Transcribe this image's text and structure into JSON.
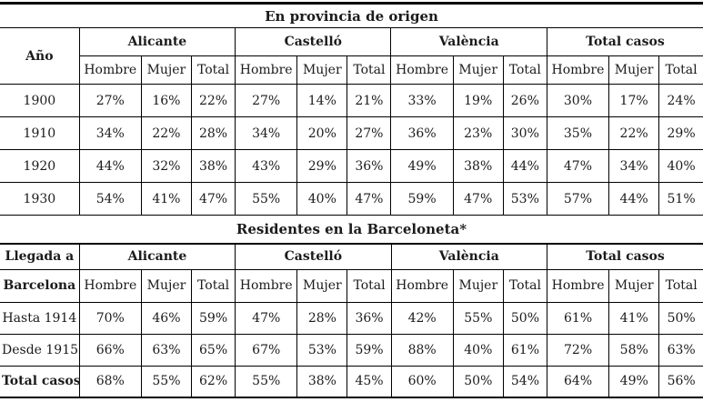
{
  "colors": {
    "text": "#1b1b1b",
    "line": "#000000",
    "background": "#ffffff"
  },
  "table1": {
    "title": "En provincia de origen",
    "corner_header": "Año",
    "groups": [
      "Alicante",
      "Castelló",
      "València",
      "Total casos"
    ],
    "sub_headers": [
      "Hombre",
      "Mujer",
      "Total"
    ],
    "rows": [
      {
        "label": "1900",
        "values": [
          "27%",
          "16%",
          "22%",
          "27%",
          "14%",
          "21%",
          "33%",
          "19%",
          "26%",
          "30%",
          "17%",
          "24%"
        ]
      },
      {
        "label": "1910",
        "values": [
          "34%",
          "22%",
          "28%",
          "34%",
          "20%",
          "27%",
          "36%",
          "23%",
          "30%",
          "35%",
          "22%",
          "29%"
        ]
      },
      {
        "label": "1920",
        "values": [
          "44%",
          "32%",
          "38%",
          "43%",
          "29%",
          "36%",
          "49%",
          "38%",
          "44%",
          "47%",
          "34%",
          "40%"
        ]
      },
      {
        "label": "1930",
        "values": [
          "54%",
          "41%",
          "47%",
          "55%",
          "40%",
          "47%",
          "59%",
          "47%",
          "53%",
          "57%",
          "44%",
          "51%"
        ]
      }
    ]
  },
  "table2": {
    "title": "Residentes en la Barceloneta*",
    "corner_header_line1": "Llegada a",
    "corner_header_line2": "Barcelona",
    "groups": [
      "Alicante",
      "Castelló",
      "València",
      "Total casos"
    ],
    "sub_headers": [
      "Hombre",
      "Mujer",
      "Total"
    ],
    "rows": [
      {
        "label": "Hasta 1914",
        "bold": false,
        "values": [
          "70%",
          "46%",
          "59%",
          "47%",
          "28%",
          "36%",
          "42%",
          "55%",
          "50%",
          "61%",
          "41%",
          "50%"
        ]
      },
      {
        "label": "Desde 1915",
        "bold": false,
        "values": [
          "66%",
          "63%",
          "65%",
          "67%",
          "53%",
          "59%",
          "88%",
          "40%",
          "61%",
          "72%",
          "58%",
          "63%"
        ]
      },
      {
        "label": "Total casos",
        "bold": true,
        "values": [
          "68%",
          "55%",
          "62%",
          "55%",
          "38%",
          "45%",
          "60%",
          "50%",
          "54%",
          "64%",
          "49%",
          "56%"
        ]
      }
    ]
  }
}
